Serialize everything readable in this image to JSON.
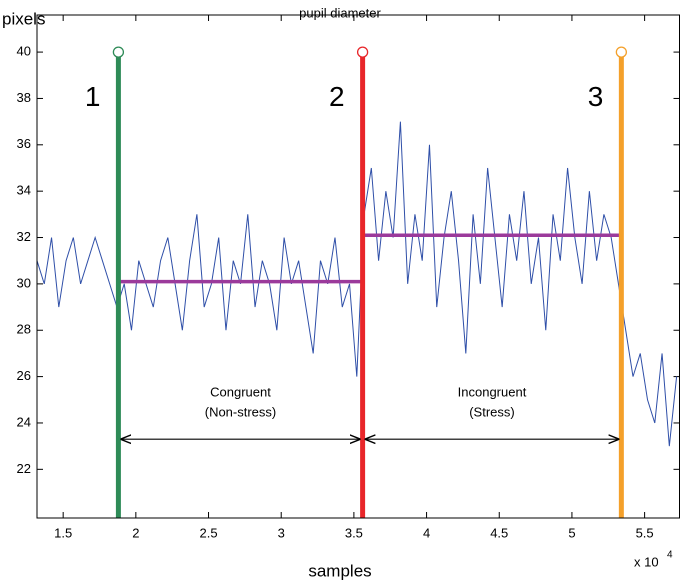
{
  "chart_data": {
    "type": "line",
    "title": "pupil diameter",
    "y_label": "pixels",
    "x_label": "samples",
    "x_multiplier": "x 10",
    "x_exponent": "4",
    "xlim": [
      1.32,
      5.74
    ],
    "ylim": [
      19.9,
      41.6
    ],
    "xticks": [
      1.5,
      2,
      2.5,
      3,
      3.5,
      4,
      4.5,
      5,
      5.5
    ],
    "yticks": [
      22,
      24,
      26,
      28,
      30,
      32,
      34,
      36,
      38,
      40
    ],
    "x": [
      1.32,
      1.37,
      1.42,
      1.47,
      1.52,
      1.57,
      1.62,
      1.67,
      1.72,
      1.77,
      1.82,
      1.87,
      1.92,
      1.97,
      2.02,
      2.07,
      2.12,
      2.17,
      2.22,
      2.27,
      2.32,
      2.37,
      2.42,
      2.47,
      2.52,
      2.57,
      2.62,
      2.67,
      2.72,
      2.77,
      2.82,
      2.87,
      2.92,
      2.97,
      3.02,
      3.07,
      3.12,
      3.17,
      3.22,
      3.27,
      3.32,
      3.37,
      3.42,
      3.47,
      3.52,
      3.57,
      3.62,
      3.67,
      3.72,
      3.77,
      3.82,
      3.87,
      3.92,
      3.97,
      4.02,
      4.07,
      4.12,
      4.17,
      4.22,
      4.27,
      4.32,
      4.37,
      4.42,
      4.47,
      4.52,
      4.57,
      4.62,
      4.67,
      4.72,
      4.77,
      4.82,
      4.87,
      4.92,
      4.97,
      5.02,
      5.07,
      5.12,
      5.17,
      5.22,
      5.27,
      5.32,
      5.37,
      5.42,
      5.47,
      5.52,
      5.57,
      5.62,
      5.67,
      5.72
    ],
    "series": [
      {
        "color": "#2f4fa8",
        "values": [
          31,
          30,
          32,
          29,
          31,
          32,
          30,
          31,
          32,
          31,
          30,
          29,
          30,
          28,
          31,
          30,
          29,
          31,
          32,
          30,
          28,
          31,
          33,
          29,
          30,
          32,
          28,
          31,
          30,
          33,
          29,
          31,
          30,
          28,
          32,
          30,
          31,
          29,
          27,
          31,
          30,
          32,
          29,
          30,
          26,
          33,
          35,
          31,
          34,
          32,
          37,
          30,
          33,
          31,
          36,
          29,
          32,
          34,
          31,
          27,
          33,
          30,
          35,
          32,
          29,
          33,
          31,
          34,
          30,
          32,
          28,
          33,
          31,
          35,
          32,
          30,
          34,
          31,
          33,
          32,
          30,
          28,
          26,
          27,
          25,
          24,
          27,
          23,
          26
        ]
      }
    ],
    "events": [
      {
        "label": "1",
        "x": 1.88,
        "value": 40,
        "color": "#2e8b57"
      },
      {
        "label": "2",
        "x": 3.56,
        "value": 40,
        "color": "#e8262a"
      },
      {
        "label": "3",
        "x": 5.34,
        "value": 40,
        "color": "#f4a02a"
      }
    ],
    "means": [
      {
        "x": [
          1.88,
          3.56
        ],
        "value": 30.1,
        "color": "#9b3a9b"
      },
      {
        "x": [
          3.56,
          5.34
        ],
        "value": 32.1,
        "color": "#9b3a9b"
      }
    ],
    "arrows": [
      {
        "x": [
          1.88,
          3.56
        ],
        "y": 23.3,
        "text": [
          "Congruent",
          "(Non-stress)"
        ]
      },
      {
        "x": [
          3.56,
          5.34
        ],
        "y": 23.3,
        "text": [
          "Incongruent",
          "(Stress)"
        ]
      }
    ]
  }
}
